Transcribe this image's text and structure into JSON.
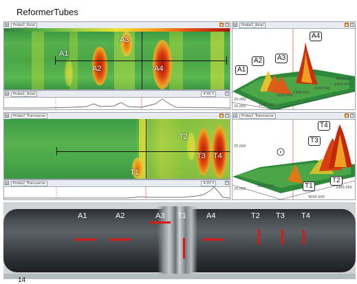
{
  "page": {
    "title": "ReformerTubes",
    "page_number": "14"
  },
  "axial_cscan": {
    "window_tab": "Probe1_Axial",
    "labels": [
      "A1",
      "A2",
      "A3",
      "A4"
    ]
  },
  "axial_ascan": {
    "window_tab": "Probe1_Axial",
    "value": "4.00 ll"
  },
  "axial_3d": {
    "window_tab": "Probe1_Axial",
    "labels": [
      "A1",
      "A2",
      "A3",
      "A4"
    ],
    "axis_labels": [
      "2000.000",
      "1500.000",
      "2300.000",
      "1400.000",
      "2400.000",
      "2600.000",
      "25.000",
      "25.000"
    ]
  },
  "transverse_cscan": {
    "window_tab": "Probe2_Transverse",
    "labels": [
      "T1",
      "T2",
      "T3",
      "T4"
    ]
  },
  "transverse_ascan": {
    "window_tab": "Probe2_Transverse",
    "value": "4.00 ll"
  },
  "transverse_3d": {
    "window_tab": "Probe2_Transverse",
    "labels": [
      "T1",
      "T2",
      "T3",
      "T4"
    ],
    "axis_labels": [
      "2300.000",
      "3000.000",
      "2400.000",
      "25.000",
      "25.000"
    ]
  },
  "photo": {
    "labels": [
      "A1",
      "A2",
      "A3",
      "T1",
      "A4",
      "T2",
      "T3",
      "T4"
    ]
  },
  "colors": {
    "indication_marker": "#e11414",
    "heat_high": "#c01808",
    "heat_mid": "#f0a020",
    "background_green": "#3c9a44"
  }
}
